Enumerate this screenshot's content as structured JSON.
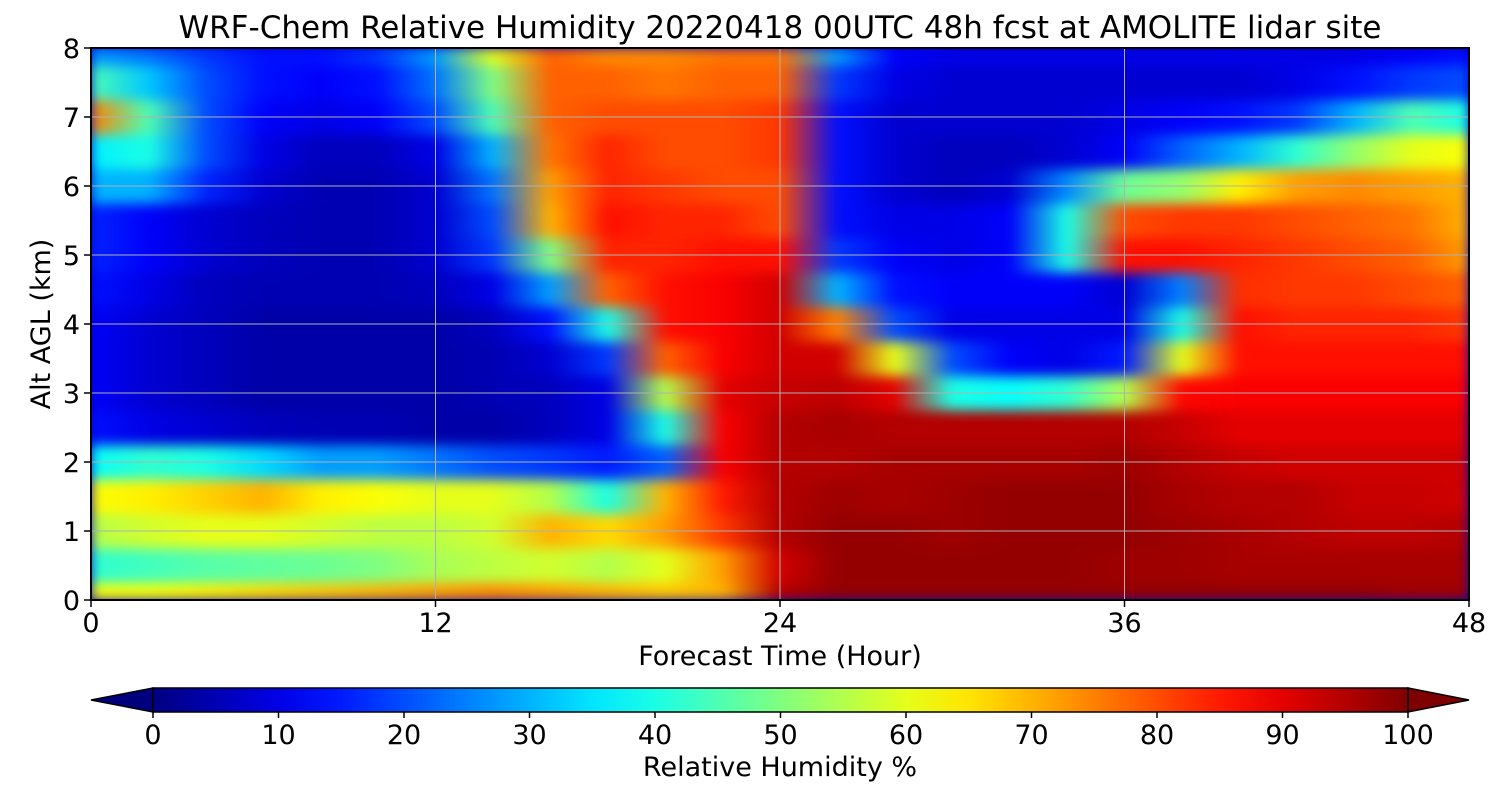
{
  "chart_data": {
    "type": "heatmap",
    "title": "WRF-Chem Relative Humidity 20220418 00UTC 48h fcst at AMOLITE lidar site",
    "xlabel": "Forecast Time (Hour)",
    "ylabel": "Alt AGL (km)",
    "xlim": [
      0,
      48
    ],
    "ylim": [
      0,
      8
    ],
    "x_ticks": [
      "0",
      "12",
      "24",
      "36",
      "48"
    ],
    "y_ticks": [
      "0",
      "1",
      "2",
      "3",
      "4",
      "5",
      "6",
      "7",
      "8"
    ],
    "grid": true,
    "colormap": "jet",
    "colorbar": {
      "label": "Relative Humidity %",
      "range": [
        0,
        100
      ],
      "ticks": [
        "0",
        "10",
        "20",
        "30",
        "40",
        "50",
        "60",
        "70",
        "80",
        "90",
        "100"
      ],
      "extend": "both",
      "orientation": "horizontal"
    },
    "x": [
      0,
      2,
      4,
      6,
      8,
      10,
      12,
      14,
      16,
      18,
      20,
      22,
      24,
      26,
      28,
      30,
      32,
      34,
      36,
      38,
      40,
      42,
      44,
      46,
      48
    ],
    "y": [
      0,
      0.5,
      1,
      1.5,
      2,
      2.5,
      3,
      3.5,
      4,
      4.5,
      5,
      5.5,
      6,
      6.5,
      7,
      7.5,
      8
    ],
    "z": [
      [
        62,
        62,
        64,
        66,
        68,
        70,
        72,
        74,
        72,
        70,
        68,
        70,
        95,
        98,
        98,
        98,
        98,
        98,
        98,
        98,
        98,
        98,
        98,
        97,
        97
      ],
      [
        42,
        44,
        46,
        47,
        48,
        50,
        54,
        56,
        58,
        55,
        60,
        72,
        92,
        98,
        98,
        98,
        98,
        98,
        97,
        97,
        96,
        96,
        96,
        96,
        96
      ],
      [
        55,
        58,
        60,
        60,
        58,
        56,
        56,
        58,
        70,
        66,
        72,
        82,
        95,
        98,
        98,
        97,
        98,
        98,
        98,
        97,
        96,
        95,
        94,
        94,
        95
      ],
      [
        62,
        64,
        67,
        70,
        64,
        62,
        60,
        60,
        55,
        40,
        70,
        85,
        95,
        97,
        96,
        97,
        98,
        98,
        98,
        96,
        95,
        95,
        93,
        93,
        92
      ],
      [
        38,
        42,
        40,
        34,
        28,
        28,
        24,
        20,
        18,
        15,
        22,
        88,
        95,
        95,
        96,
        96,
        96,
        96,
        97,
        95,
        93,
        92,
        92,
        92,
        92
      ],
      [
        14,
        10,
        8,
        6,
        5,
        5,
        4,
        4,
        6,
        10,
        40,
        88,
        95,
        96,
        95,
        95,
        95,
        95,
        95,
        93,
        90,
        90,
        90,
        90,
        90
      ],
      [
        12,
        8,
        6,
        4,
        4,
        4,
        4,
        5,
        6,
        10,
        55,
        90,
        93,
        94,
        90,
        40,
        38,
        42,
        55,
        87,
        88,
        88,
        88,
        88,
        88
      ],
      [
        12,
        8,
        6,
        4,
        4,
        4,
        4,
        5,
        8,
        18,
        78,
        88,
        92,
        92,
        60,
        20,
        12,
        10,
        15,
        60,
        86,
        86,
        86,
        86,
        86
      ],
      [
        12,
        8,
        6,
        4,
        4,
        4,
        4,
        6,
        14,
        40,
        86,
        88,
        92,
        75,
        20,
        10,
        10,
        10,
        10,
        40,
        86,
        84,
        84,
        84,
        82
      ],
      [
        14,
        10,
        6,
        5,
        5,
        5,
        6,
        10,
        28,
        78,
        86,
        88,
        92,
        30,
        14,
        12,
        12,
        12,
        8,
        25,
        83,
        82,
        82,
        80,
        78
      ],
      [
        16,
        12,
        8,
        6,
        5,
        5,
        8,
        18,
        50,
        84,
        84,
        86,
        86,
        18,
        12,
        10,
        12,
        40,
        86,
        86,
        84,
        82,
        80,
        78,
        72
      ],
      [
        16,
        12,
        8,
        6,
        5,
        5,
        8,
        20,
        70,
        86,
        84,
        84,
        80,
        14,
        10,
        10,
        12,
        40,
        80,
        82,
        82,
        80,
        78,
        76,
        70
      ],
      [
        30,
        30,
        16,
        8,
        5,
        5,
        8,
        24,
        72,
        84,
        82,
        80,
        80,
        14,
        8,
        6,
        8,
        26,
        48,
        52,
        64,
        72,
        74,
        72,
        70
      ],
      [
        36,
        40,
        20,
        10,
        6,
        6,
        10,
        30,
        76,
        84,
        80,
        80,
        82,
        14,
        8,
        6,
        6,
        8,
        12,
        22,
        30,
        42,
        52,
        60,
        62
      ],
      [
        75,
        45,
        20,
        12,
        10,
        12,
        20,
        45,
        78,
        80,
        80,
        80,
        82,
        14,
        8,
        8,
        8,
        8,
        10,
        12,
        14,
        18,
        30,
        45,
        40
      ],
      [
        45,
        32,
        20,
        14,
        12,
        14,
        24,
        50,
        78,
        78,
        76,
        78,
        78,
        18,
        10,
        8,
        8,
        8,
        8,
        8,
        8,
        10,
        14,
        18,
        20
      ],
      [
        28,
        24,
        18,
        14,
        14,
        18,
        28,
        60,
        78,
        74,
        74,
        76,
        76,
        28,
        12,
        10,
        10,
        10,
        10,
        10,
        10,
        10,
        10,
        12,
        14
      ]
    ]
  }
}
